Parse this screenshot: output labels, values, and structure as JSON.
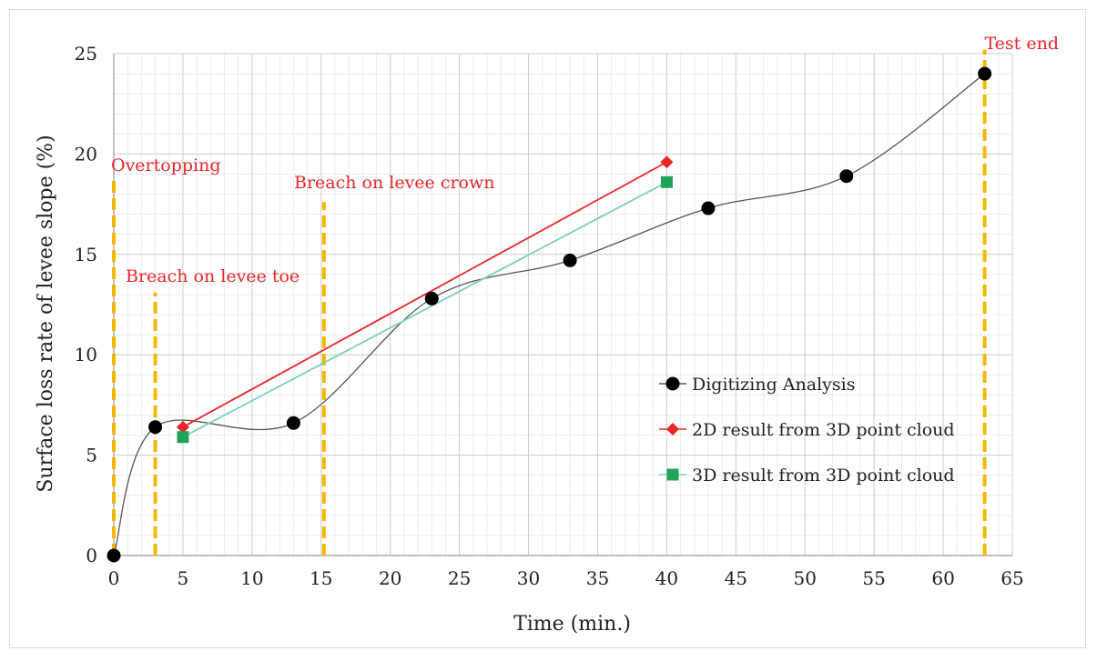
{
  "chart_data": {
    "type": "line",
    "xlabel": "Time (min.)",
    "ylabel": "Surface loss rate of levee slope (%)",
    "xlim": [
      0,
      65
    ],
    "ylim": [
      0,
      25
    ],
    "x_ticks": [
      0,
      5,
      10,
      15,
      20,
      25,
      30,
      35,
      40,
      45,
      50,
      55,
      60,
      65
    ],
    "y_ticks": [
      0,
      5,
      10,
      15,
      20,
      25
    ],
    "x_minor_step": 1,
    "y_minor_step": 1,
    "grid": true,
    "legend_position": "right-middle",
    "series": [
      {
        "name": "Digitizing Analysis",
        "color": "#000000",
        "line_color": "#555555",
        "marker": "circle",
        "smooth": true,
        "x": [
          0,
          3,
          13,
          23,
          33,
          43,
          53,
          63
        ],
        "y": [
          0,
          6.4,
          6.6,
          12.8,
          14.7,
          17.3,
          18.9,
          24.0
        ]
      },
      {
        "name": "2D result from 3D point cloud",
        "color": "#e8262a",
        "line_color": "#e8262a",
        "marker": "diamond",
        "smooth": false,
        "x": [
          5,
          40
        ],
        "y": [
          6.4,
          19.6
        ]
      },
      {
        "name": "3D result from 3D point cloud",
        "color": "#1fa35b",
        "line_color": "#7fd3b0",
        "marker": "square",
        "smooth": false,
        "x": [
          5,
          40
        ],
        "y": [
          5.9,
          18.6
        ]
      }
    ],
    "event_lines": [
      {
        "x": 0,
        "y_top": 18.7,
        "label": "Overtopping"
      },
      {
        "x": 3,
        "y_top": 13.1,
        "label": "Breach on levee toe"
      },
      {
        "x": 15.2,
        "y_top": 17.6,
        "label": "Breach on levee crown"
      },
      {
        "x": 63,
        "y_top": 25.2,
        "label": "Test end"
      }
    ],
    "event_line_color": "#f5b800"
  }
}
